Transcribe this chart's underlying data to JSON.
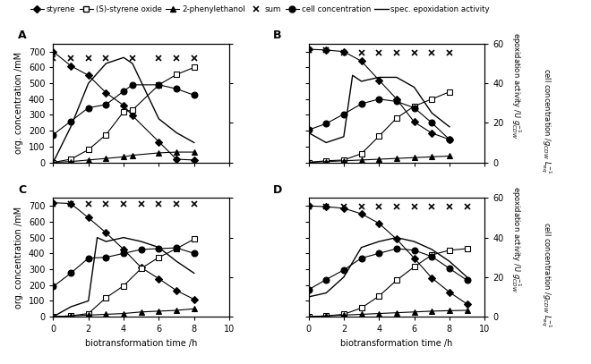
{
  "panel_A": {
    "label": "A",
    "styrene": {
      "x": [
        0,
        1,
        2,
        3,
        4,
        4.5,
        6,
        7,
        8
      ],
      "y": [
        700,
        610,
        550,
        440,
        360,
        295,
        130,
        20,
        15
      ]
    },
    "so": {
      "x": [
        0,
        1,
        2,
        3,
        4,
        4.5,
        6,
        7,
        8
      ],
      "y": [
        0,
        20,
        80,
        175,
        320,
        330,
        490,
        555,
        600
      ]
    },
    "pe": {
      "x": [
        0,
        1,
        2,
        3,
        4,
        4.5,
        6,
        7,
        8
      ],
      "y": [
        0,
        5,
        15,
        25,
        35,
        45,
        60,
        65,
        65
      ]
    },
    "sum": {
      "x": [
        0,
        1,
        2,
        3,
        4.5,
        6,
        7,
        8
      ],
      "y": [
        660,
        660,
        660,
        660,
        660,
        660,
        660,
        660
      ]
    },
    "cell": {
      "x": [
        0,
        1,
        2,
        3,
        4,
        4.5,
        6,
        7,
        8
      ],
      "y": [
        175,
        260,
        345,
        365,
        450,
        490,
        490,
        465,
        425
      ]
    },
    "epox": {
      "x": [
        0,
        1,
        2,
        3,
        4,
        4.5,
        6,
        7,
        8
      ],
      "y": [
        0,
        18,
        40,
        50,
        53,
        50,
        22,
        15,
        10
      ]
    }
  },
  "panel_B": {
    "label": "B",
    "styrene": {
      "x": [
        0,
        1,
        2,
        3,
        4,
        5,
        6,
        7,
        8
      ],
      "y": [
        715,
        710,
        700,
        640,
        520,
        400,
        255,
        185,
        145
      ]
    },
    "so": {
      "x": [
        0,
        1,
        2,
        3,
        4,
        5,
        6,
        7,
        8
      ],
      "y": [
        0,
        10,
        15,
        55,
        165,
        280,
        355,
        400,
        445
      ]
    },
    "pe": {
      "x": [
        0,
        1,
        2,
        3,
        4,
        5,
        6,
        7,
        8
      ],
      "y": [
        0,
        5,
        10,
        15,
        20,
        25,
        30,
        35,
        40
      ]
    },
    "sum": {
      "x": [
        0,
        1,
        2,
        3,
        4,
        5,
        6,
        7,
        8
      ],
      "y": [
        710,
        710,
        695,
        695,
        695,
        695,
        695,
        695,
        695
      ]
    },
    "cell": {
      "x": [
        0,
        1,
        2,
        3,
        4,
        5,
        6,
        7,
        8
      ],
      "y": [
        205,
        245,
        305,
        370,
        400,
        385,
        345,
        250,
        145
      ]
    },
    "epox": {
      "x": [
        0,
        1,
        2,
        2.5,
        3,
        4,
        5,
        6,
        7,
        8
      ],
      "y": [
        15,
        10,
        13,
        44,
        41,
        43,
        43,
        38,
        25,
        18
      ]
    }
  },
  "panel_C": {
    "label": "C",
    "styrene": {
      "x": [
        0,
        1,
        2,
        3,
        4,
        5,
        6,
        7,
        8
      ],
      "y": [
        720,
        715,
        625,
        530,
        425,
        310,
        240,
        165,
        110
      ]
    },
    "so": {
      "x": [
        0,
        1,
        2,
        3,
        4,
        5,
        6,
        7,
        8
      ],
      "y": [
        0,
        5,
        20,
        120,
        195,
        305,
        375,
        430,
        490
      ]
    },
    "pe": {
      "x": [
        0,
        1,
        2,
        3,
        4,
        5,
        6,
        7,
        8
      ],
      "y": [
        0,
        5,
        10,
        15,
        20,
        30,
        35,
        40,
        50
      ]
    },
    "sum": {
      "x": [
        0,
        1,
        2,
        3,
        4,
        5,
        6,
        7,
        8
      ],
      "y": [
        710,
        710,
        710,
        710,
        710,
        710,
        710,
        710,
        710
      ]
    },
    "cell": {
      "x": [
        0,
        1,
        2,
        3,
        4,
        5,
        6,
        7,
        8
      ],
      "y": [
        190,
        275,
        370,
        375,
        400,
        425,
        430,
        435,
        400
      ]
    },
    "epox": {
      "x": [
        0,
        1,
        2,
        2.5,
        3,
        4,
        5,
        6,
        7,
        8
      ],
      "y": [
        0,
        5,
        8,
        40,
        38,
        40,
        38,
        35,
        28,
        22
      ]
    }
  },
  "panel_D": {
    "label": "D",
    "styrene": {
      "x": [
        0,
        1,
        2,
        3,
        4,
        5,
        6,
        7,
        8,
        9
      ],
      "y": [
        700,
        695,
        685,
        650,
        590,
        490,
        370,
        245,
        155,
        80
      ]
    },
    "so": {
      "x": [
        0,
        1,
        2,
        3,
        4,
        5,
        6,
        7,
        8,
        9
      ],
      "y": [
        0,
        5,
        15,
        55,
        130,
        230,
        315,
        390,
        420,
        430
      ]
    },
    "pe": {
      "x": [
        0,
        1,
        2,
        3,
        4,
        5,
        6,
        7,
        8,
        9
      ],
      "y": [
        0,
        5,
        10,
        15,
        20,
        25,
        30,
        35,
        38,
        40
      ]
    },
    "sum": {
      "x": [
        0,
        1,
        2,
        3,
        4,
        5,
        6,
        7,
        8,
        9
      ],
      "y": [
        695,
        695,
        695,
        695,
        695,
        695,
        695,
        695,
        695,
        695
      ]
    },
    "cell": {
      "x": [
        0,
        1,
        2,
        3,
        4,
        5,
        6,
        7,
        8,
        9
      ],
      "y": [
        170,
        235,
        295,
        370,
        400,
        430,
        420,
        380,
        305,
        230
      ]
    },
    "epox": {
      "x": [
        0,
        1,
        2,
        3,
        4,
        5,
        6,
        7,
        8,
        9
      ],
      "y": [
        10,
        12,
        20,
        35,
        38,
        40,
        38,
        34,
        28,
        20
      ]
    }
  },
  "ylim_left": [
    0,
    750
  ],
  "ylim_right": [
    0,
    60
  ],
  "xlim": [
    0,
    10
  ],
  "yticks_left": [
    0,
    100,
    200,
    300,
    400,
    500,
    600,
    700
  ],
  "yticks_right": [
    0,
    20,
    40,
    60
  ],
  "xticks": [
    0,
    2,
    4,
    6,
    8,
    10
  ],
  "ylabel_left": "org. concentration /mM",
  "ylabel_right1": "epoxidation activity /U g",
  "ylabel_right2": "cell concentration /g",
  "xlabel": "biotransformation time /h"
}
